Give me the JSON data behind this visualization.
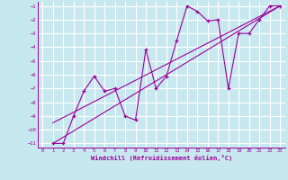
{
  "background_color": "#c8e8f0",
  "grid_color": "#ffffff",
  "line_color": "#990099",
  "xlabel": "Windchill (Refroidissement éolien,°C)",
  "xlim": [
    -0.5,
    23.5
  ],
  "ylim": [
    -11.3,
    -0.7
  ],
  "xtick_vals": [
    0,
    1,
    2,
    3,
    4,
    5,
    6,
    7,
    8,
    9,
    10,
    11,
    12,
    13,
    14,
    15,
    16,
    17,
    18,
    19,
    20,
    21,
    22,
    23
  ],
  "ytick_vals": [
    -11,
    -10,
    -9,
    -8,
    -7,
    -6,
    -5,
    -4,
    -3,
    -2,
    -1
  ],
  "zigzag_x": [
    1,
    2,
    3,
    4,
    5,
    6,
    7,
    8,
    9,
    10,
    11,
    12,
    13,
    14,
    15,
    16,
    17,
    18,
    19,
    20,
    21,
    22,
    23
  ],
  "zigzag_y": [
    -11,
    -11,
    -9,
    -7.2,
    -6.1,
    -7.2,
    -7.0,
    -9.0,
    -9.3,
    -4.2,
    -7.0,
    -6.1,
    -3.5,
    -1.0,
    -1.4,
    -2.1,
    -2.0,
    -7.0,
    -3.0,
    -3.0,
    -2.0,
    -1.0,
    -1.0
  ],
  "lower_line_x": [
    1,
    23
  ],
  "lower_line_y": [
    -11.0,
    -1.0
  ],
  "upper_line_x": [
    1,
    23
  ],
  "upper_line_y": [
    -9.5,
    -1.0
  ]
}
